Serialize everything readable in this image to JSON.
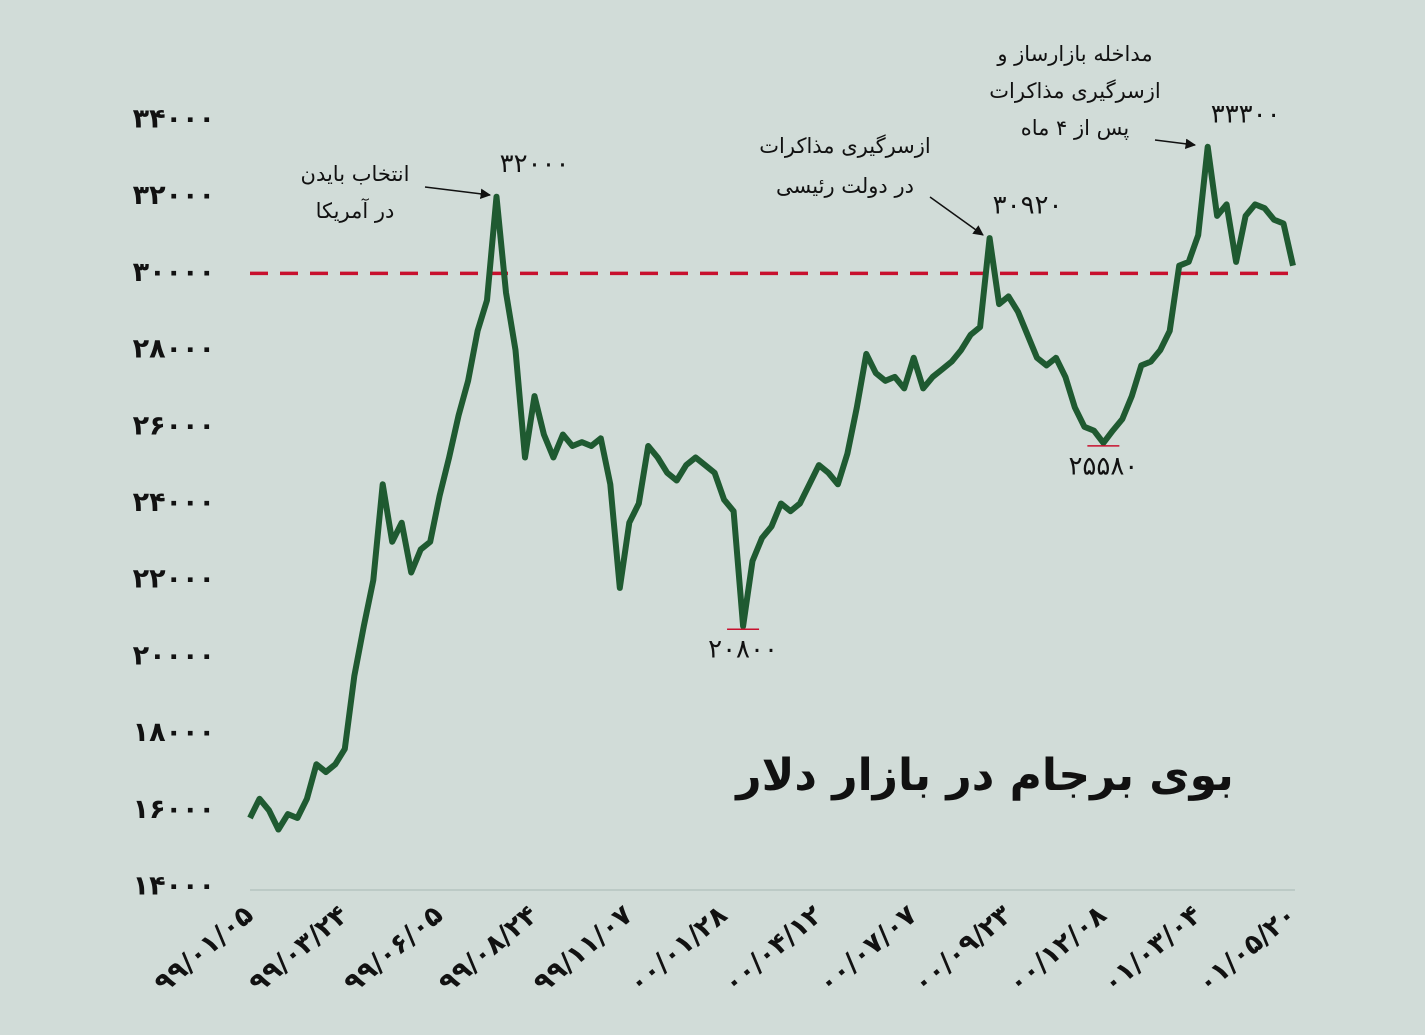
{
  "chart_data": {
    "type": "line",
    "title": "بوی برجام در بازار دلار",
    "color": "#1f5a31",
    "categories": [
      "۹۹/۰۱/۰۵",
      null,
      null,
      null,
      null,
      null,
      null,
      null,
      null,
      null,
      "۹۹/۰۳/۲۴",
      null,
      null,
      null,
      null,
      null,
      null,
      null,
      null,
      null,
      "۹۹/۰۶/۰۵",
      null,
      null,
      null,
      null,
      null,
      null,
      null,
      null,
      null,
      "۹۹/۰۸/۲۴",
      null,
      null,
      null,
      null,
      null,
      null,
      null,
      null,
      null,
      "۹۹/۱۱/۰۷",
      null,
      null,
      null,
      null,
      null,
      null,
      null,
      null,
      null,
      "۰۰/۰۱/۲۸",
      null,
      null,
      null,
      null,
      null,
      null,
      null,
      null,
      null,
      "۰۰/۰۴/۱۲",
      null,
      null,
      null,
      null,
      null,
      null,
      null,
      null,
      null,
      "۰۰/۰۷/۰۷",
      null,
      null,
      null,
      null,
      null,
      null,
      null,
      null,
      null,
      "۰۰/۰۹/۲۳",
      null,
      null,
      null,
      null,
      null,
      null,
      null,
      null,
      null,
      "۰۰/۱۲/۰۸",
      null,
      null,
      null,
      null,
      null,
      null,
      null,
      null,
      null,
      "۰۱/۰۳/۰۴",
      null,
      null,
      null,
      null,
      null,
      null,
      null,
      null,
      null,
      "۰۱/۰۵/۲۰"
    ],
    "values": [
      15800,
      16300,
      16000,
      15500,
      15900,
      15800,
      16300,
      17200,
      17000,
      17200,
      17600,
      19500,
      20800,
      22000,
      24500,
      23000,
      23500,
      22200,
      22800,
      23000,
      24200,
      25200,
      26300,
      27200,
      28500,
      29300,
      32000,
      29500,
      28000,
      25200,
      26800,
      25800,
      25200,
      25800,
      25500,
      25600,
      25500,
      25700,
      24500,
      21800,
      23500,
      24000,
      25500,
      25200,
      24800,
      24600,
      25000,
      25200,
      25000,
      24800,
      24100,
      23800,
      20800,
      22500,
      23100,
      23400,
      24000,
      23800,
      24000,
      24500,
      25000,
      24800,
      24500,
      25300,
      26500,
      27900,
      27400,
      27200,
      27300,
      27000,
      27800,
      27000,
      27300,
      27500,
      27700,
      28000,
      28400,
      28600,
      30920,
      29200,
      29400,
      29000,
      28400,
      27800,
      27600,
      27800,
      27300,
      26500,
      26000,
      25900,
      25580,
      25900,
      26200,
      26800,
      27600,
      27700,
      28000,
      28500,
      30200,
      30300,
      31000,
      33300,
      31500,
      31800,
      30300,
      31500,
      31800,
      31700,
      31400,
      31300,
      30200
    ],
    "value_labels": [
      null,
      null,
      null,
      null,
      null,
      null,
      null,
      null,
      null,
      null,
      null,
      null,
      null,
      null,
      null,
      null,
      null,
      null,
      null,
      null,
      null,
      null,
      null,
      null,
      null,
      null,
      "۳۲۰۰۰",
      null,
      null,
      null,
      null,
      null,
      null,
      null,
      null,
      null,
      null,
      null,
      null,
      null,
      null,
      null,
      null,
      null,
      null,
      null,
      null,
      null,
      null,
      null,
      null,
      null,
      "۲۰۸۰۰",
      null,
      null,
      null,
      null,
      null,
      null,
      null,
      null,
      null,
      null,
      null,
      null,
      null,
      null,
      null,
      null,
      null,
      null,
      null,
      null,
      null,
      null,
      null,
      null,
      null,
      "۳۰۹۲۰",
      null,
      null,
      null,
      null,
      null,
      null,
      null,
      null,
      null,
      null,
      null,
      "۲۵۵۸۰",
      null,
      null,
      null,
      null,
      null,
      null,
      null,
      null,
      null,
      null,
      "۳۳۳۰۰",
      null,
      null,
      null,
      null,
      null,
      null,
      null,
      null,
      null
    ],
    "ylim": [
      14000,
      34000
    ],
    "yticks": [
      {
        "value": 14000,
        "label": "۱۴۰۰۰"
      },
      {
        "value": 16000,
        "label": "۱۶۰۰۰"
      },
      {
        "value": 18000,
        "label": "۱۸۰۰۰"
      },
      {
        "value": 20000,
        "label": "۲۰۰۰۰"
      },
      {
        "value": 22000,
        "label": "۲۲۰۰۰"
      },
      {
        "value": 24000,
        "label": "۲۴۰۰۰"
      },
      {
        "value": 26000,
        "label": "۲۶۰۰۰"
      },
      {
        "value": 28000,
        "label": "۲۸۰۰۰"
      },
      {
        "value": 30000,
        "label": "۳۰۰۰۰"
      },
      {
        "value": 32000,
        "label": "۳۲۰۰۰"
      },
      {
        "value": 34000,
        "label": "۳۴۰۰۰"
      }
    ],
    "reference_line": {
      "value": 30000,
      "color": "#c8102e"
    },
    "annotations": [
      {
        "lines": [
          "انتخاب بایدن",
          "در آمریکا"
        ]
      },
      {
        "lines": [
          "ازسرگیری مذاکرات",
          "در دولت رئیسی"
        ]
      },
      {
        "lines": [
          "مداخله بازارساز و",
          "ازسرگیری مذاکرات",
          "پس از ۴ ماه"
        ]
      }
    ]
  }
}
